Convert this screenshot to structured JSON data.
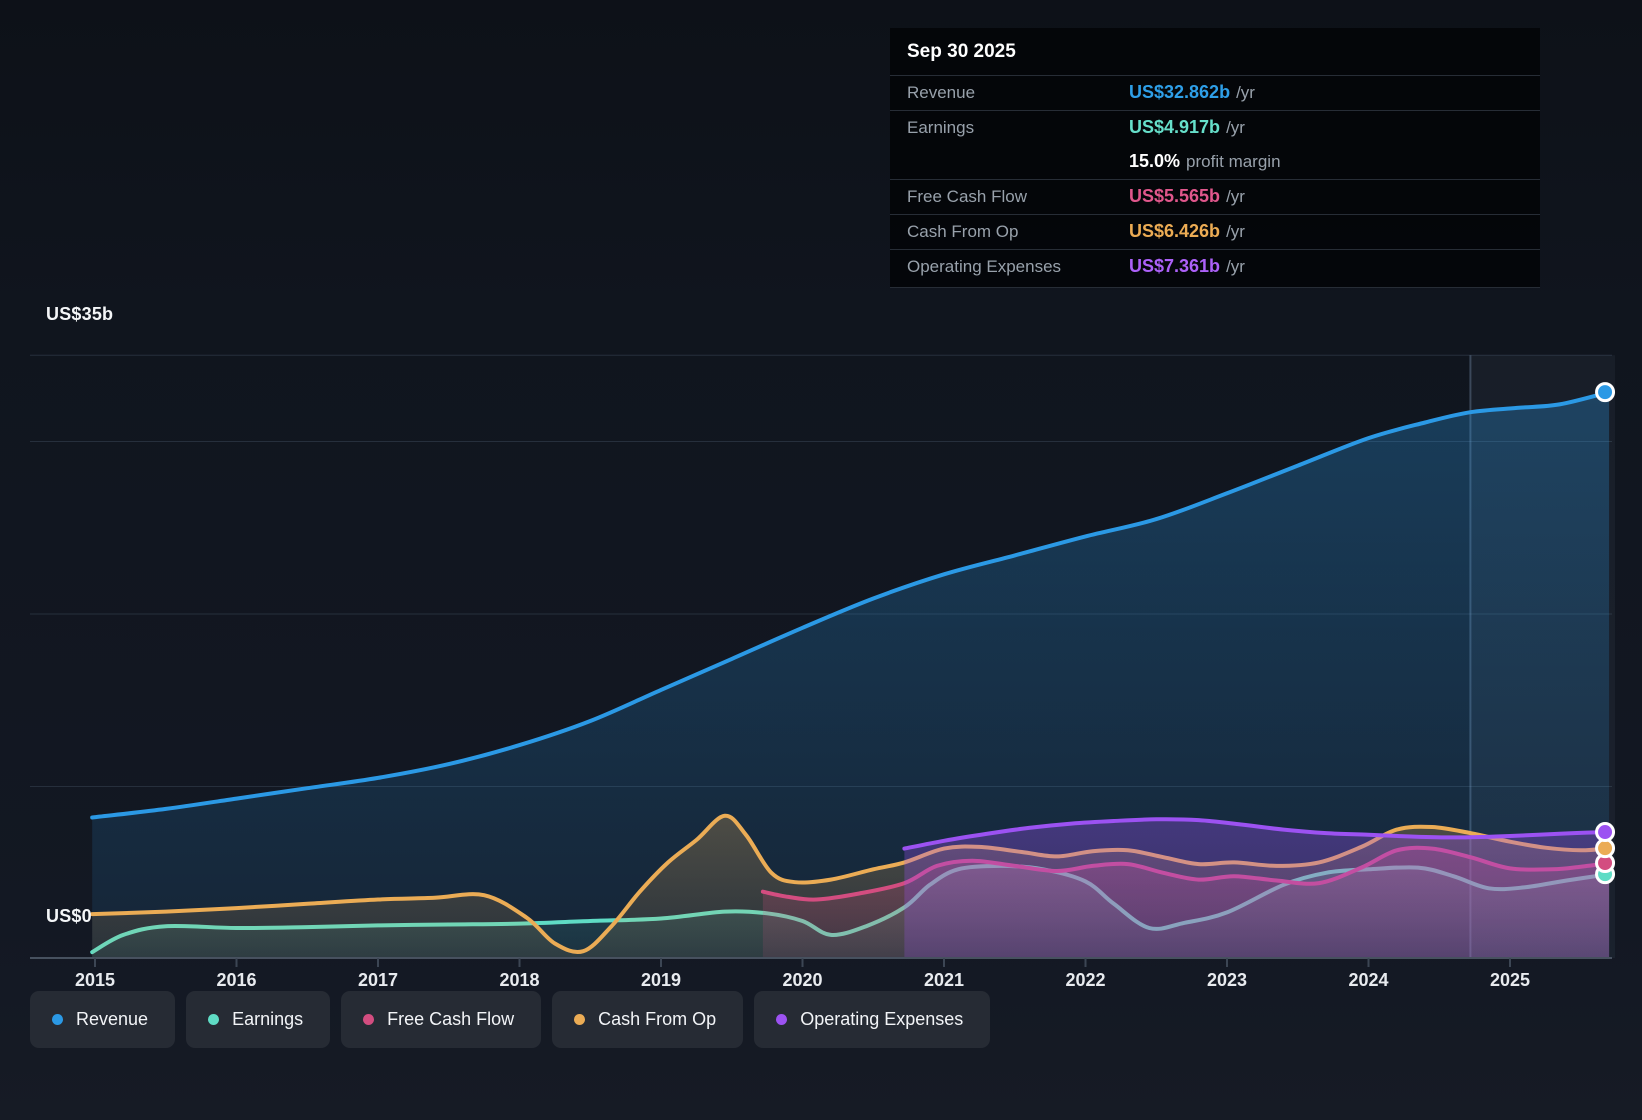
{
  "tooltip": {
    "title": "Sep 30 2025",
    "rows": [
      {
        "label": "Revenue",
        "value": "US$32.862b",
        "suffix": "/yr",
        "color": "#2e9fe8",
        "divider": true
      },
      {
        "label": "Earnings",
        "value": "US$4.917b",
        "suffix": "/yr",
        "color": "#66dfca",
        "divider": true
      },
      {
        "label": "",
        "value": "15.0%",
        "suffix": "profit margin",
        "color": "#ffffff",
        "divider": false
      },
      {
        "label": "Free Cash Flow",
        "value": "US$5.565b",
        "suffix": "/yr",
        "color": "#e0578c",
        "divider": true
      },
      {
        "label": "Cash From Op",
        "value": "US$6.426b",
        "suffix": "/yr",
        "color": "#ecac54",
        "divider": true
      },
      {
        "label": "Operating Expenses",
        "value": "US$7.361b",
        "suffix": "/yr",
        "color": "#ac61f8",
        "divider": true
      }
    ]
  },
  "y_axis": {
    "top_label": "US$35b",
    "zero_label": "US$0"
  },
  "x_axis": {
    "ticks": [
      "2015",
      "2016",
      "2017",
      "2018",
      "2019",
      "2020",
      "2021",
      "2022",
      "2023",
      "2024",
      "2025"
    ]
  },
  "legend": {
    "items": [
      {
        "label": "Revenue",
        "color": "#2b99e5"
      },
      {
        "label": "Earnings",
        "color": "#5fdcc5"
      },
      {
        "label": "Free Cash Flow",
        "color": "#d34d80"
      },
      {
        "label": "Cash From Op",
        "color": "#ebac55"
      },
      {
        "label": "Operating Expenses",
        "color": "#9c52f2"
      }
    ]
  },
  "chart_data": {
    "type": "area",
    "title": "Company earnings and revenue history",
    "x_unit": "decimal_year",
    "y_unit": "US$ billions",
    "ylim": [
      0,
      35
    ],
    "xlim_years": [
      2015,
      2025.7
    ],
    "gridline_values": [
      35,
      30,
      20,
      10
    ],
    "zero_line_value": 0,
    "grid": true,
    "legend_position": "bottom",
    "highlight_band_years": [
      2024.72,
      2025.7
    ],
    "hovered_date": "Sep 30 2025",
    "series": [
      {
        "name": "Revenue",
        "color": "#2b99e5",
        "fill_opacity_top": 0.3,
        "fill_opacity_bottom": 0.1,
        "points": [
          [
            2014.98,
            8.2
          ],
          [
            2015.5,
            8.7
          ],
          [
            2016,
            9.3
          ],
          [
            2016.5,
            9.9
          ],
          [
            2017,
            10.5
          ],
          [
            2017.5,
            11.3
          ],
          [
            2018,
            12.4
          ],
          [
            2018.5,
            13.8
          ],
          [
            2019,
            15.6
          ],
          [
            2019.5,
            17.4
          ],
          [
            2020,
            19.2
          ],
          [
            2020.5,
            20.9
          ],
          [
            2021,
            22.3
          ],
          [
            2021.5,
            23.4
          ],
          [
            2022,
            24.5
          ],
          [
            2022.5,
            25.5
          ],
          [
            2023,
            27.0
          ],
          [
            2023.5,
            28.6
          ],
          [
            2024,
            30.2
          ],
          [
            2024.4,
            31.1
          ],
          [
            2024.72,
            31.7
          ],
          [
            2025.05,
            31.95
          ],
          [
            2025.35,
            32.15
          ],
          [
            2025.7,
            32.862
          ]
        ]
      },
      {
        "name": "Earnings",
        "color": "#5fdcc5",
        "fill_opacity_top": 0.2,
        "fill_opacity_bottom": 0.06,
        "points": [
          [
            2014.98,
            0.4
          ],
          [
            2015.2,
            1.4
          ],
          [
            2015.5,
            1.9
          ],
          [
            2016,
            1.8
          ],
          [
            2016.5,
            1.85
          ],
          [
            2017,
            1.95
          ],
          [
            2017.5,
            2.0
          ],
          [
            2018,
            2.05
          ],
          [
            2018.5,
            2.2
          ],
          [
            2019,
            2.35
          ],
          [
            2019.45,
            2.75
          ],
          [
            2019.75,
            2.65
          ],
          [
            2020,
            2.2
          ],
          [
            2020.2,
            1.4
          ],
          [
            2020.45,
            1.9
          ],
          [
            2020.72,
            3.0
          ],
          [
            2020.9,
            4.3
          ],
          [
            2021.1,
            5.2
          ],
          [
            2021.4,
            5.4
          ],
          [
            2021.7,
            5.2
          ],
          [
            2022,
            4.5
          ],
          [
            2022.2,
            3.2
          ],
          [
            2022.45,
            1.8
          ],
          [
            2022.7,
            2.1
          ],
          [
            2023,
            2.7
          ],
          [
            2023.4,
            4.3
          ],
          [
            2023.7,
            5.0
          ],
          [
            2024,
            5.2
          ],
          [
            2024.35,
            5.3
          ],
          [
            2024.6,
            4.8
          ],
          [
            2024.85,
            4.1
          ],
          [
            2025.1,
            4.15
          ],
          [
            2025.4,
            4.55
          ],
          [
            2025.7,
            4.917
          ]
        ]
      },
      {
        "name": "Cash From Op",
        "color": "#ebac55",
        "fill_opacity_top": 0.26,
        "fill_opacity_bottom": 0.09,
        "points": [
          [
            2014.98,
            2.6
          ],
          [
            2015.5,
            2.75
          ],
          [
            2016,
            2.95
          ],
          [
            2016.5,
            3.2
          ],
          [
            2017,
            3.45
          ],
          [
            2017.4,
            3.55
          ],
          [
            2017.75,
            3.7
          ],
          [
            2018.05,
            2.4
          ],
          [
            2018.25,
            0.9
          ],
          [
            2018.45,
            0.45
          ],
          [
            2018.65,
            1.9
          ],
          [
            2018.85,
            3.9
          ],
          [
            2019.05,
            5.6
          ],
          [
            2019.25,
            6.9
          ],
          [
            2019.45,
            8.3
          ],
          [
            2019.6,
            7.2
          ],
          [
            2019.78,
            5.0
          ],
          [
            2019.95,
            4.45
          ],
          [
            2020.2,
            4.6
          ],
          [
            2020.5,
            5.2
          ],
          [
            2020.72,
            5.6
          ],
          [
            2021,
            6.4
          ],
          [
            2021.25,
            6.5
          ],
          [
            2021.55,
            6.2
          ],
          [
            2021.8,
            5.95
          ],
          [
            2022.05,
            6.25
          ],
          [
            2022.3,
            6.3
          ],
          [
            2022.55,
            5.9
          ],
          [
            2022.8,
            5.5
          ],
          [
            2023.05,
            5.6
          ],
          [
            2023.35,
            5.4
          ],
          [
            2023.65,
            5.6
          ],
          [
            2023.95,
            6.5
          ],
          [
            2024.2,
            7.5
          ],
          [
            2024.45,
            7.65
          ],
          [
            2024.72,
            7.3
          ],
          [
            2025,
            6.8
          ],
          [
            2025.25,
            6.45
          ],
          [
            2025.5,
            6.3
          ],
          [
            2025.7,
            6.426
          ]
        ]
      },
      {
        "name": "Free Cash Flow",
        "color": "#d34d80",
        "fill_opacity_top": 0.3,
        "fill_opacity_bottom": 0.12,
        "points": [
          [
            2019.72,
            3.9
          ],
          [
            2019.9,
            3.6
          ],
          [
            2020.1,
            3.45
          ],
          [
            2020.4,
            3.8
          ],
          [
            2020.72,
            4.4
          ],
          [
            2020.95,
            5.4
          ],
          [
            2021.2,
            5.7
          ],
          [
            2021.5,
            5.4
          ],
          [
            2021.8,
            5.1
          ],
          [
            2022.05,
            5.4
          ],
          [
            2022.3,
            5.5
          ],
          [
            2022.55,
            5.0
          ],
          [
            2022.8,
            4.6
          ],
          [
            2023.05,
            4.8
          ],
          [
            2023.35,
            4.55
          ],
          [
            2023.65,
            4.4
          ],
          [
            2023.95,
            5.3
          ],
          [
            2024.2,
            6.3
          ],
          [
            2024.45,
            6.4
          ],
          [
            2024.72,
            5.9
          ],
          [
            2025,
            5.25
          ],
          [
            2025.3,
            5.2
          ],
          [
            2025.5,
            5.35
          ],
          [
            2025.7,
            5.565
          ]
        ]
      },
      {
        "name": "Operating Expenses",
        "color": "#9c52f2",
        "fill_opacity_top": 0.34,
        "fill_opacity_bottom": 0.22,
        "points": [
          [
            2020.72,
            6.4
          ],
          [
            2021,
            6.85
          ],
          [
            2021.3,
            7.25
          ],
          [
            2021.6,
            7.6
          ],
          [
            2021.9,
            7.85
          ],
          [
            2022.2,
            8.0
          ],
          [
            2022.5,
            8.1
          ],
          [
            2022.8,
            8.05
          ],
          [
            2023.1,
            7.8
          ],
          [
            2023.4,
            7.5
          ],
          [
            2023.7,
            7.3
          ],
          [
            2024,
            7.2
          ],
          [
            2024.3,
            7.1
          ],
          [
            2024.6,
            7.05
          ],
          [
            2024.9,
            7.1
          ],
          [
            2025.2,
            7.2
          ],
          [
            2025.45,
            7.3
          ],
          [
            2025.7,
            7.361
          ]
        ]
      }
    ],
    "end_dots": [
      {
        "series": "Revenue",
        "value": 32.862
      },
      {
        "series": "Earnings",
        "value": 4.917
      },
      {
        "series": "Free Cash Flow",
        "value": 5.565
      },
      {
        "series": "Cash From Op",
        "value": 6.426
      },
      {
        "series": "Operating Expenses",
        "value": 7.361
      }
    ]
  }
}
